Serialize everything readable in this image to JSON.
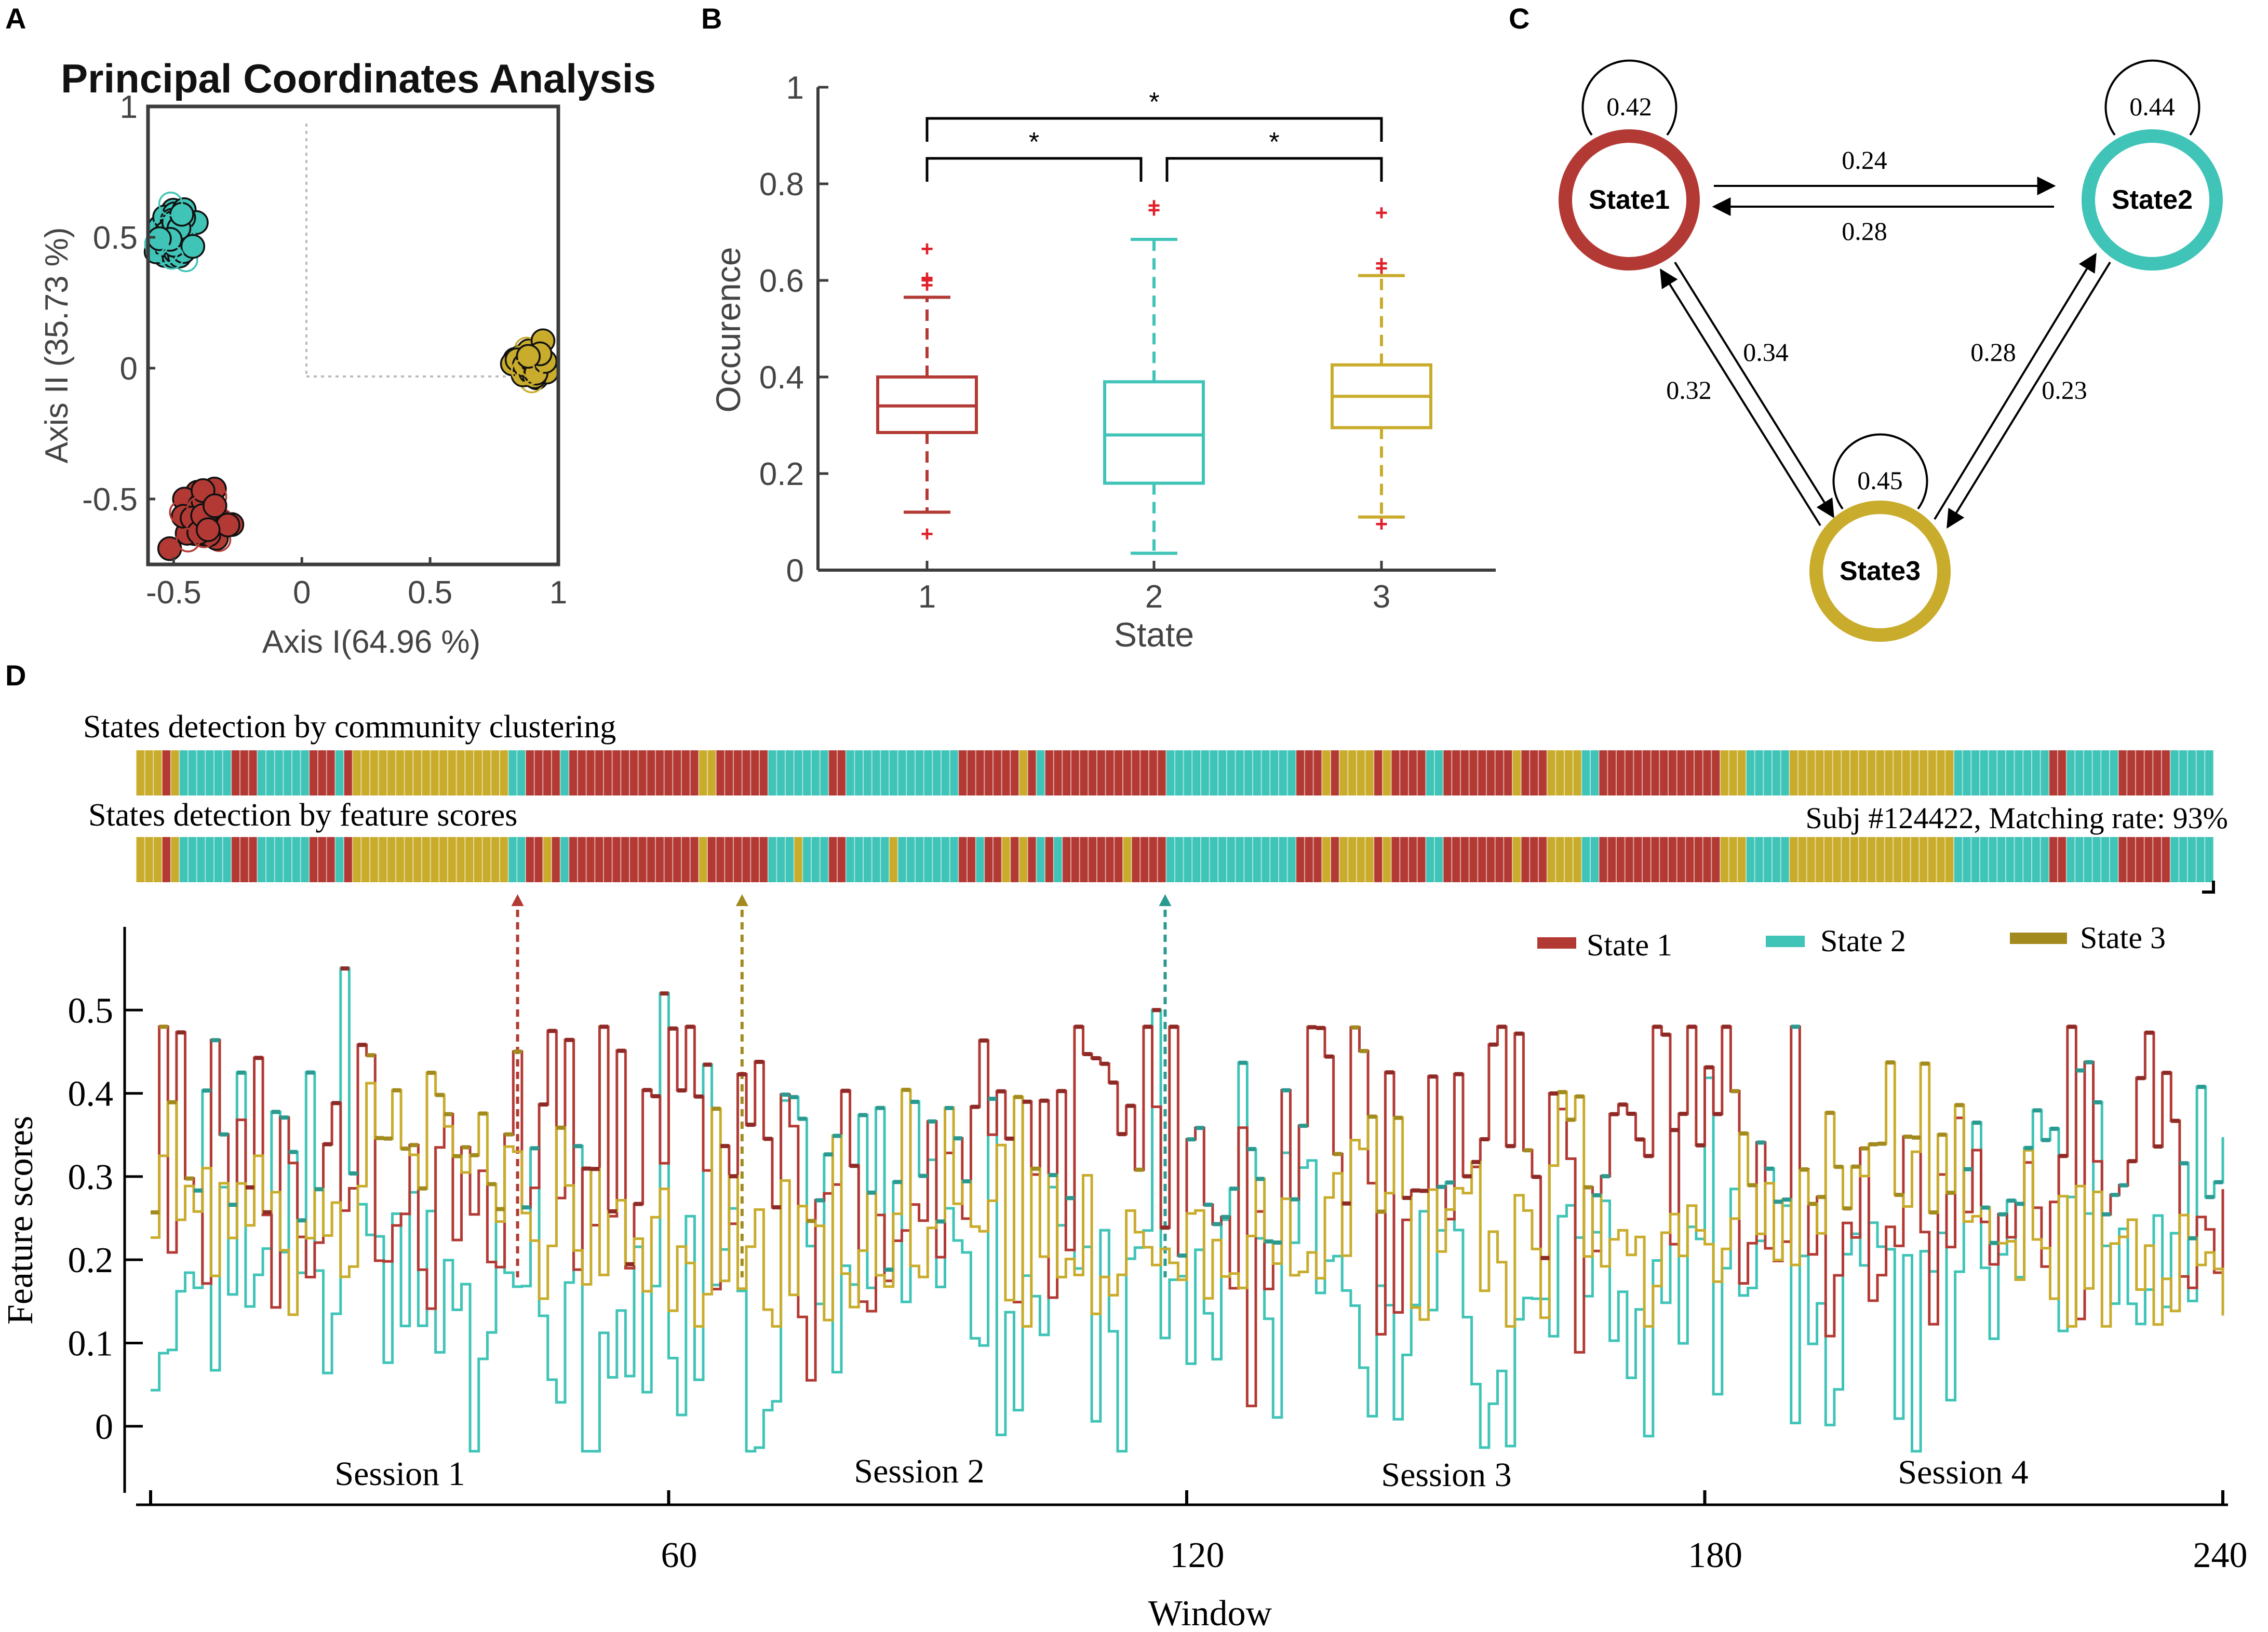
{
  "colors": {
    "state1": "#b33a34",
    "state2": "#3fc4b7",
    "state3": "#c9ac2c",
    "state3_line": "#a28a1e",
    "state2_line": "#2a9990",
    "state1_line": "#8e2a26",
    "axis": "#3c3c3c",
    "outlier": "#e0202a"
  },
  "panel_labels": {
    "a": "A",
    "b": "B",
    "c": "C",
    "d": "D"
  },
  "chart_data": [
    {
      "panel": "A",
      "type": "scatter",
      "title": "Principal Coordinates Analysis",
      "xlabel": "Axis I(64.96 %)",
      "ylabel": "Axis II (35.73 %)",
      "xlim": [
        -0.6,
        1.0
      ],
      "ylim": [
        -0.75,
        1.0
      ],
      "xticks": [
        -0.5,
        0,
        0.5,
        1
      ],
      "xtick_labels": [
        "-0.5",
        "0",
        "0.5",
        "1"
      ],
      "yticks": [
        -0.5,
        0,
        0.5,
        1
      ],
      "ytick_labels": [
        "-0.5",
        "0",
        "0.5",
        "1"
      ],
      "series": [
        {
          "name": "State 1",
          "center": [
            -0.38,
            -0.57
          ],
          "spread": [
            0.05,
            0.06
          ],
          "count": 60
        },
        {
          "name": "State 2",
          "center": [
            -0.5,
            0.51
          ],
          "spread": [
            0.04,
            0.05
          ],
          "count": 55
        },
        {
          "name": "State 3",
          "center": [
            0.88,
            0.02
          ],
          "spread": [
            0.03,
            0.03
          ],
          "count": 55
        }
      ]
    },
    {
      "panel": "B",
      "type": "box",
      "xlabel": "State",
      "ylabel": "Occurence",
      "ylim": [
        0,
        1
      ],
      "yticks": [
        0,
        0.2,
        0.4,
        0.6,
        0.8,
        1
      ],
      "ytick_labels": [
        "0",
        "0.2",
        "0.4",
        "0.6",
        "0.8",
        "1"
      ],
      "categories": [
        "1",
        "2",
        "3"
      ],
      "boxes": [
        {
          "name": "State 1",
          "whisker_low": 0.12,
          "q1": 0.285,
          "median": 0.34,
          "q3": 0.4,
          "whisker_high": 0.565,
          "outliers": [
            0.075,
            0.59,
            0.6,
            0.605,
            0.665
          ]
        },
        {
          "name": "State 2",
          "whisker_low": 0.035,
          "q1": 0.18,
          "median": 0.28,
          "q3": 0.39,
          "whisker_high": 0.685,
          "outliers": [
            0.745,
            0.755
          ]
        },
        {
          "name": "State 3",
          "whisker_low": 0.11,
          "q1": 0.295,
          "median": 0.36,
          "q3": 0.425,
          "whisker_high": 0.61,
          "outliers": [
            0.095,
            0.625,
            0.635,
            0.74
          ]
        }
      ],
      "significance": [
        {
          "from": "1",
          "to": "3",
          "label": "*"
        },
        {
          "from": "1",
          "to": "2",
          "label": "*"
        },
        {
          "from": "2",
          "to": "3",
          "label": "*"
        }
      ]
    },
    {
      "panel": "C",
      "type": "diagram",
      "nodes": [
        {
          "id": "s1",
          "label": "State1",
          "self_loop": "0.42"
        },
        {
          "id": "s2",
          "label": "State2",
          "self_loop": "0.44"
        },
        {
          "id": "s3",
          "label": "State3",
          "self_loop": "0.45"
        }
      ],
      "edges": [
        {
          "from": "s1",
          "to": "s2",
          "label": "0.24"
        },
        {
          "from": "s2",
          "to": "s1",
          "label": "0.28"
        },
        {
          "from": "s1",
          "to": "s3",
          "label": "0.34"
        },
        {
          "from": "s3",
          "to": "s1",
          "label": "0.32"
        },
        {
          "from": "s3",
          "to": "s2",
          "label": "0.28"
        },
        {
          "from": "s2",
          "to": "s3",
          "label": "0.23"
        }
      ]
    },
    {
      "panel": "D",
      "type": "line",
      "bar1_title": "States detection by community clustering",
      "bar2_title": "States detection by feature scores",
      "subject_text": "Subj #124422, Matching rate: 93%",
      "window_count": 240,
      "xlabel": "Window",
      "ylabel": "Feature scores",
      "xlim": [
        0,
        240
      ],
      "ylim": [
        -0.08,
        0.6
      ],
      "xticks": [
        60,
        120,
        180,
        240
      ],
      "xtick_labels": [
        "60",
        "120",
        "180",
        "240"
      ],
      "yticks": [
        0,
        0.1,
        0.2,
        0.3,
        0.4,
        0.5
      ],
      "ytick_labels": [
        "0",
        "0.1",
        "0.2",
        "0.3",
        "0.4",
        "0.5"
      ],
      "sessions": [
        "Session 1",
        "Session 2",
        "Session 3",
        "Session 4"
      ],
      "legend": [
        "State 1",
        "State 2",
        "State 3"
      ],
      "markers": [
        {
          "window": 42,
          "state": "State 1"
        },
        {
          "window": 68,
          "state": "State 3"
        },
        {
          "window": 117,
          "state": "State 2"
        }
      ],
      "peaks": [
        {
          "window": 22,
          "value": 0.55,
          "state": "State 2"
        },
        {
          "window": 42,
          "value": 0.45,
          "state": "State 1"
        },
        {
          "window": 59,
          "value": 0.52,
          "state": "State 2"
        },
        {
          "window": 116,
          "value": 0.5,
          "state": "State 2"
        },
        {
          "window": 190,
          "value": 0.48,
          "state": "State 1"
        }
      ],
      "series_ranges": {
        "State 1": [
          0.01,
          0.48
        ],
        "State 2": [
          -0.03,
          0.55
        ],
        "State 3": [
          0.12,
          0.49
        ]
      },
      "seed": 124422
    }
  ]
}
